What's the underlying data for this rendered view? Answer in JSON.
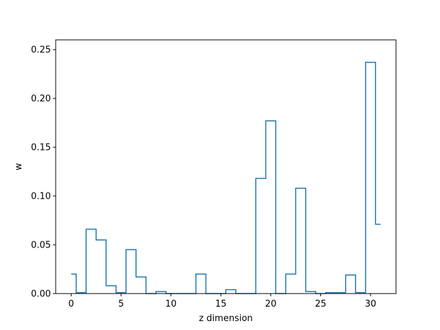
{
  "chart_data": {
    "type": "line",
    "drawstyle": "steps-mid",
    "title": "",
    "xlabel": "z dimension",
    "ylabel": "w",
    "xlim": [
      -1.55,
      32.55
    ],
    "ylim": [
      0,
      0.26
    ],
    "xticks": [
      0,
      5,
      10,
      15,
      20,
      25,
      30
    ],
    "yticks": [
      0.0,
      0.05,
      0.1,
      0.15,
      0.2,
      0.25
    ],
    "grid": false,
    "legend": "none",
    "series": [
      {
        "color": "#1f77b4",
        "x": [
          0,
          1,
          2,
          3,
          4,
          5,
          6,
          7,
          8,
          9,
          10,
          11,
          12,
          13,
          14,
          15,
          16,
          17,
          18,
          19,
          20,
          21,
          22,
          23,
          24,
          25,
          26,
          27,
          28,
          29,
          30,
          31
        ],
        "values": [
          0.02,
          0.001,
          0.066,
          0.055,
          0.008,
          0.001,
          0.045,
          0.017,
          0.0,
          0.002,
          0.0,
          0.0,
          0.0,
          0.02,
          0.0,
          0.0,
          0.004,
          0.0,
          0.0,
          0.118,
          0.177,
          0.0,
          0.02,
          0.108,
          0.002,
          0.0,
          0.001,
          0.001,
          0.019,
          0.001,
          0.237,
          0.071
        ]
      }
    ]
  }
}
